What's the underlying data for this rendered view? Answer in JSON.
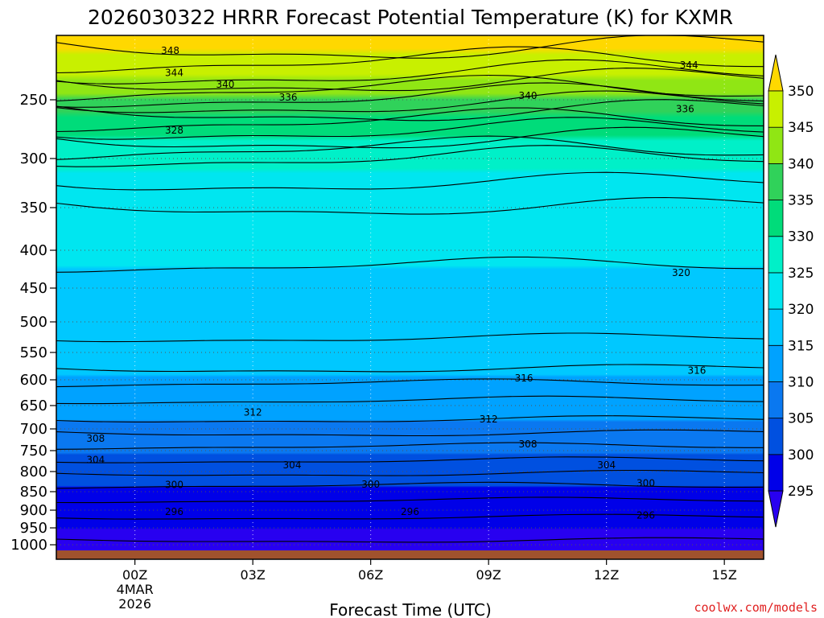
{
  "chart_data": {
    "type": "heatmap",
    "title": "2026030322 HRRR Forecast Potential Temperature (K) for KXMR",
    "xlabel": "Forecast Time (UTC)",
    "credit": "coolwx.com/models",
    "x_ticks": [
      {
        "hour": 0,
        "label": "00Z",
        "sub": [
          "4MAR",
          "2026"
        ]
      },
      {
        "hour": 3,
        "label": "03Z"
      },
      {
        "hour": 6,
        "label": "06Z"
      },
      {
        "hour": 9,
        "label": "09Z"
      },
      {
        "hour": 12,
        "label": "12Z"
      },
      {
        "hour": 15,
        "label": "15Z"
      }
    ],
    "x_range_hours": [
      -2,
      16
    ],
    "y_axis_pressure_hPa": [
      250,
      300,
      350,
      400,
      450,
      500,
      550,
      600,
      650,
      700,
      750,
      800,
      850,
      900,
      950,
      1000
    ],
    "y_range_hPa": [
      1020,
      200
    ],
    "grid": true,
    "colorbar": {
      "levels": [
        295,
        300,
        305,
        310,
        315,
        320,
        325,
        330,
        335,
        340,
        345,
        350
      ],
      "labels": [
        "295",
        "300",
        "305",
        "310",
        "315",
        "320",
        "325",
        "330",
        "335",
        "340",
        "345",
        "350"
      ],
      "colors": [
        "#2800f0",
        "#0000e8",
        "#0050e0",
        "#0a78f0",
        "#00a2ff",
        "#00c8ff",
        "#00e6f0",
        "#00f0c8",
        "#00dc7a",
        "#30d25a",
        "#90e614",
        "#c8f000",
        "#ffff00",
        "#ffe600"
      ],
      "under_color": "#2800f0",
      "over_color": "#ffd800",
      "placement": "right"
    },
    "contour_interval_K": 2,
    "contour_labels": [
      {
        "value": "348",
        "hour": 0.9,
        "p": 212
      },
      {
        "value": "344",
        "hour": 1.0,
        "p": 229
      },
      {
        "value": "344",
        "hour": 14.1,
        "p": 223
      },
      {
        "value": "340",
        "hour": 2.3,
        "p": 238
      },
      {
        "value": "340",
        "hour": 10.0,
        "p": 247
      },
      {
        "value": "336",
        "hour": 3.9,
        "p": 248
      },
      {
        "value": "336",
        "hour": 14.0,
        "p": 258
      },
      {
        "value": "328",
        "hour": 1.0,
        "p": 276
      },
      {
        "value": "320",
        "hour": 13.9,
        "p": 430
      },
      {
        "value": "316",
        "hour": 9.9,
        "p": 597
      },
      {
        "value": "316",
        "hour": 14.3,
        "p": 583
      },
      {
        "value": "312",
        "hour": 3.0,
        "p": 665
      },
      {
        "value": "312",
        "hour": 9.0,
        "p": 679
      },
      {
        "value": "308",
        "hour": -1.0,
        "p": 722
      },
      {
        "value": "308",
        "hour": 10.0,
        "p": 735
      },
      {
        "value": "304",
        "hour": -1.0,
        "p": 772
      },
      {
        "value": "304",
        "hour": 4.0,
        "p": 785
      },
      {
        "value": "304",
        "hour": 12.0,
        "p": 785
      },
      {
        "value": "300",
        "hour": 1.0,
        "p": 833
      },
      {
        "value": "300",
        "hour": 6.0,
        "p": 832
      },
      {
        "value": "300",
        "hour": 13.0,
        "p": 829
      },
      {
        "value": "296",
        "hour": 1.0,
        "p": 904
      },
      {
        "value": "296",
        "hour": 7.0,
        "p": 904
      },
      {
        "value": "296",
        "hour": 13.0,
        "p": 915
      }
    ]
  }
}
